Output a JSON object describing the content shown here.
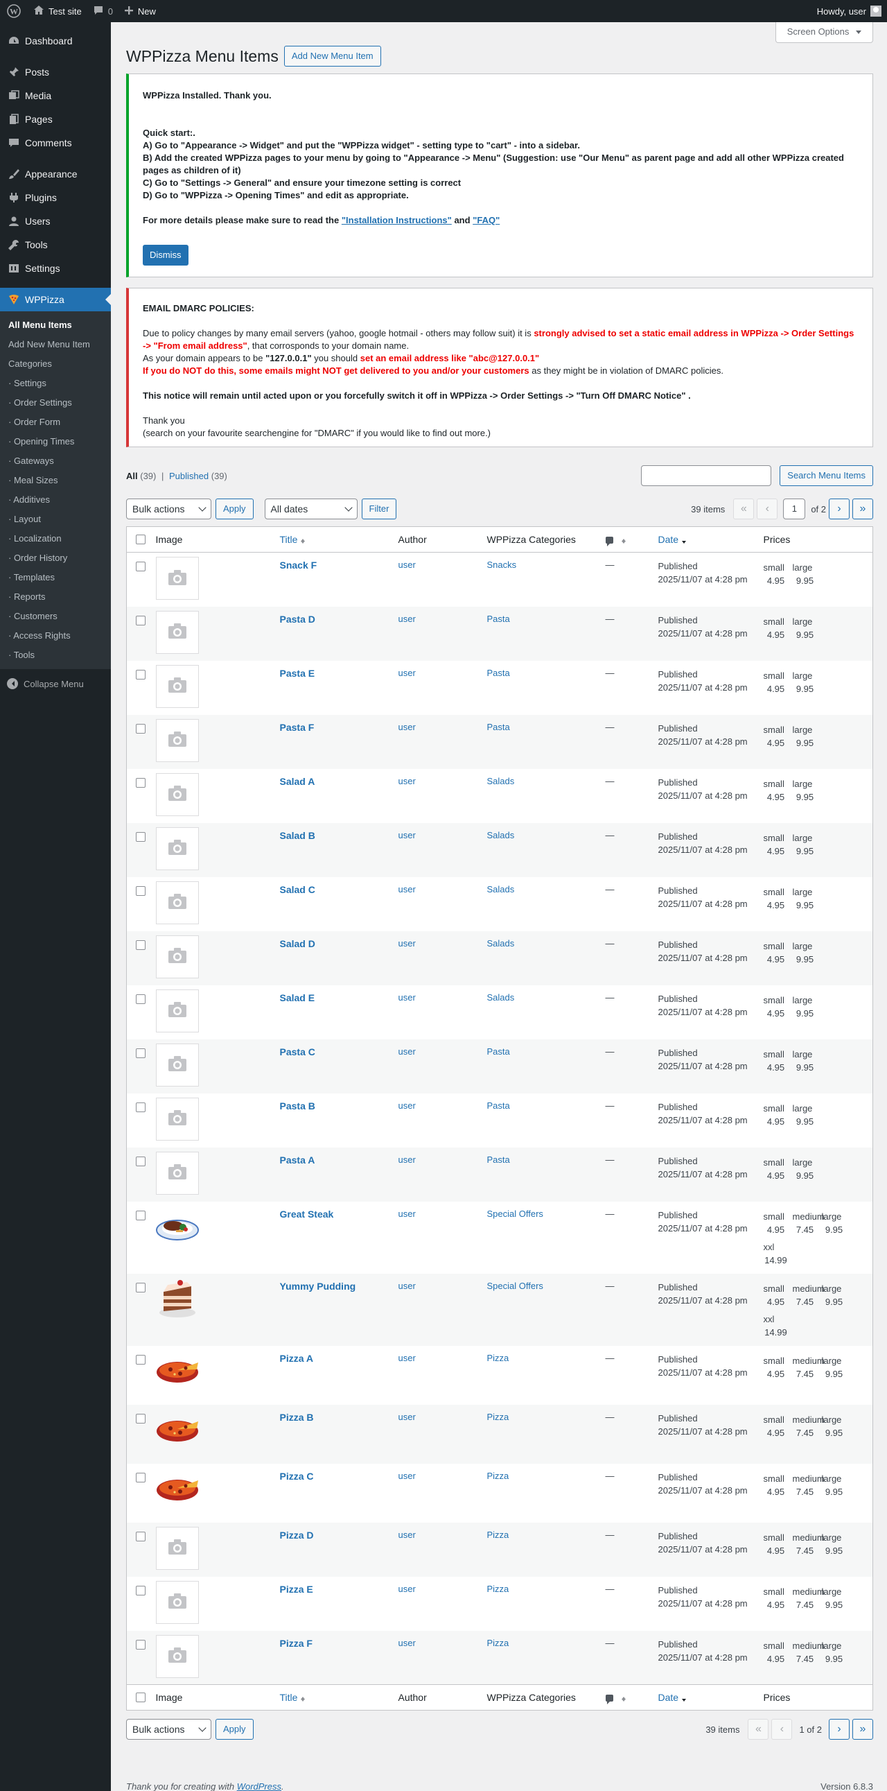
{
  "adminbar": {
    "site_name": "Test site",
    "comments_count": "0",
    "new_label": "New",
    "howdy": "Howdy, user"
  },
  "sidebar": {
    "dashboard": "Dashboard",
    "posts": "Posts",
    "media": "Media",
    "pages": "Pages",
    "comments": "Comments",
    "appearance": "Appearance",
    "plugins": "Plugins",
    "users": "Users",
    "tools": "Tools",
    "settings": "Settings",
    "wppizza": "WPPizza",
    "submenu": [
      "All Menu Items",
      "Add New Menu Item",
      "Categories",
      "· Settings",
      "· Order Settings",
      "· Order Form",
      "· Opening Times",
      "· Gateways",
      "· Meal Sizes",
      "· Additives",
      "· Layout",
      "· Localization",
      "· Order History",
      "· Templates",
      "· Reports",
      "· Customers",
      "· Access Rights",
      "· Tools"
    ],
    "collapse": "Collapse Menu"
  },
  "screen_options": "Screen Options",
  "page": {
    "title": "WPPizza Menu Items",
    "add_new": "Add New Menu Item"
  },
  "notice_install": {
    "heading": "WPPizza Installed. Thank you.",
    "quick_start": "Quick start:.",
    "a": "A) Go to \"Appearance -> Widget\" and put the \"WPPizza widget\" - setting type to \"cart\" - into a sidebar.",
    "b": "B) Add the created WPPizza pages to your menu by going to \"Appearance -> Menu\" (Suggestion: use \"Our Menu\" as parent page and add all other WPPizza created pages as children of it)",
    "c": "C) Go to \"Settings -> General\" and ensure your timezone setting is correct",
    "d": "D) Go to \"WPPizza -> Opening Times\" and edit as appropriate.",
    "more_prefix": "For more details please make sure to read the",
    "install_link": "\"Installation Instructions\"",
    "and": "and",
    "faq_link": "\"FAQ\"",
    "dismiss": "Dismiss"
  },
  "notice_dmarc": {
    "heading": "EMAIL DMARC POLICIES:",
    "p1_a": "Due to policy changes by many email servers (yahoo, google hotmail - others may follow suit) it is",
    "p1_red": "strongly advised to set a static email address in WPPizza -> Order Settings -> \"From email address\"",
    "p1_b": ", that corrosponds to your domain name.",
    "p2_a": "As your domain appears to be",
    "p2_domain": "\"127.0.0.1\"",
    "p2_b": "you should",
    "p2_red": "set an email address like \"abc@127.0.0.1\"",
    "p3_red": "If you do NOT do this, some emails might NOT get delivered to you and/or your customers",
    "p3_b": "as they might be in violation of DMARC policies.",
    "p4": "This notice will remain until acted upon or you forcefully switch it off in WPPizza -> Order Settings -> \"Turn Off DMARC Notice\" .",
    "thanks": "Thank you",
    "search_hint": "(search on your favourite searchengine for \"DMARC\" if you would like to find out more.)"
  },
  "views": {
    "all": "All",
    "all_count": "(39)",
    "sep": "|",
    "published": "Published",
    "published_count": "(39)"
  },
  "search_button": "Search Menu Items",
  "tablenav": {
    "bulk": "Bulk actions",
    "apply": "Apply",
    "dates": "All dates",
    "filter": "Filter",
    "items": "39 items",
    "page": "1",
    "of": "of 2",
    "page_text": "1 of 2"
  },
  "pager_glyphs": {
    "first": "«",
    "prev": "‹",
    "next": "›",
    "last": "»"
  },
  "columns": {
    "image": "Image",
    "title": "Title",
    "author": "Author",
    "categories": "WPPizza Categories",
    "date": "Date",
    "prices": "Prices"
  },
  "rows": [
    {
      "title": "Snack F",
      "author": "user",
      "category": "Snacks",
      "comments": "—",
      "status": "Published",
      "date": "2025/11/07 at 4:28 pm",
      "image": "placeholder",
      "prices": [
        [
          "small",
          "4.95"
        ],
        [
          "large",
          "9.95"
        ]
      ]
    },
    {
      "title": "Pasta D",
      "author": "user",
      "category": "Pasta",
      "comments": "—",
      "status": "Published",
      "date": "2025/11/07 at 4:28 pm",
      "image": "placeholder",
      "prices": [
        [
          "small",
          "4.95"
        ],
        [
          "large",
          "9.95"
        ]
      ]
    },
    {
      "title": "Pasta E",
      "author": "user",
      "category": "Pasta",
      "comments": "—",
      "status": "Published",
      "date": "2025/11/07 at 4:28 pm",
      "image": "placeholder",
      "prices": [
        [
          "small",
          "4.95"
        ],
        [
          "large",
          "9.95"
        ]
      ]
    },
    {
      "title": "Pasta F",
      "author": "user",
      "category": "Pasta",
      "comments": "—",
      "status": "Published",
      "date": "2025/11/07 at 4:28 pm",
      "image": "placeholder",
      "prices": [
        [
          "small",
          "4.95"
        ],
        [
          "large",
          "9.95"
        ]
      ]
    },
    {
      "title": "Salad A",
      "author": "user",
      "category": "Salads",
      "comments": "—",
      "status": "Published",
      "date": "2025/11/07 at 4:28 pm",
      "image": "placeholder",
      "prices": [
        [
          "small",
          "4.95"
        ],
        [
          "large",
          "9.95"
        ]
      ]
    },
    {
      "title": "Salad B",
      "author": "user",
      "category": "Salads",
      "comments": "—",
      "status": "Published",
      "date": "2025/11/07 at 4:28 pm",
      "image": "placeholder",
      "prices": [
        [
          "small",
          "4.95"
        ],
        [
          "large",
          "9.95"
        ]
      ]
    },
    {
      "title": "Salad C",
      "author": "user",
      "category": "Salads",
      "comments": "—",
      "status": "Published",
      "date": "2025/11/07 at 4:28 pm",
      "image": "placeholder",
      "prices": [
        [
          "small",
          "4.95"
        ],
        [
          "large",
          "9.95"
        ]
      ]
    },
    {
      "title": "Salad D",
      "author": "user",
      "category": "Salads",
      "comments": "—",
      "status": "Published",
      "date": "2025/11/07 at 4:28 pm",
      "image": "placeholder",
      "prices": [
        [
          "small",
          "4.95"
        ],
        [
          "large",
          "9.95"
        ]
      ]
    },
    {
      "title": "Salad E",
      "author": "user",
      "category": "Salads",
      "comments": "—",
      "status": "Published",
      "date": "2025/11/07 at 4:28 pm",
      "image": "placeholder",
      "prices": [
        [
          "small",
          "4.95"
        ],
        [
          "large",
          "9.95"
        ]
      ]
    },
    {
      "title": "Pasta C",
      "author": "user",
      "category": "Pasta",
      "comments": "—",
      "status": "Published",
      "date": "2025/11/07 at 4:28 pm",
      "image": "placeholder",
      "prices": [
        [
          "small",
          "4.95"
        ],
        [
          "large",
          "9.95"
        ]
      ]
    },
    {
      "title": "Pasta B",
      "author": "user",
      "category": "Pasta",
      "comments": "—",
      "status": "Published",
      "date": "2025/11/07 at 4:28 pm",
      "image": "placeholder",
      "prices": [
        [
          "small",
          "4.95"
        ],
        [
          "large",
          "9.95"
        ]
      ]
    },
    {
      "title": "Pasta A",
      "author": "user",
      "category": "Pasta",
      "comments": "—",
      "status": "Published",
      "date": "2025/11/07 at 4:28 pm",
      "image": "placeholder",
      "prices": [
        [
          "small",
          "4.95"
        ],
        [
          "large",
          "9.95"
        ]
      ]
    },
    {
      "title": "Great Steak",
      "author": "user",
      "category": "Special Offers",
      "comments": "—",
      "status": "Published",
      "date": "2025/11/07 at 4:28 pm",
      "image": "steak",
      "prices": [
        [
          "small",
          "4.95"
        ],
        [
          "medium",
          "7.45"
        ],
        [
          "large",
          "9.95"
        ],
        [
          "xxl",
          "14.99"
        ]
      ]
    },
    {
      "title": "Yummy Pudding",
      "author": "user",
      "category": "Special Offers",
      "comments": "—",
      "status": "Published",
      "date": "2025/11/07 at 4:28 pm",
      "image": "cake",
      "prices": [
        [
          "small",
          "4.95"
        ],
        [
          "medium",
          "7.45"
        ],
        [
          "large",
          "9.95"
        ],
        [
          "xxl",
          "14.99"
        ]
      ]
    },
    {
      "title": "Pizza A",
      "author": "user",
      "category": "Pizza",
      "comments": "—",
      "status": "Published",
      "date": "2025/11/07 at 4:28 pm",
      "image": "pizza",
      "prices": [
        [
          "small",
          "4.95"
        ],
        [
          "medium",
          "7.45"
        ],
        [
          "large",
          "9.95"
        ]
      ]
    },
    {
      "title": "Pizza B",
      "author": "user",
      "category": "Pizza",
      "comments": "—",
      "status": "Published",
      "date": "2025/11/07 at 4:28 pm",
      "image": "pizza",
      "prices": [
        [
          "small",
          "4.95"
        ],
        [
          "medium",
          "7.45"
        ],
        [
          "large",
          "9.95"
        ]
      ]
    },
    {
      "title": "Pizza C",
      "author": "user",
      "category": "Pizza",
      "comments": "—",
      "status": "Published",
      "date": "2025/11/07 at 4:28 pm",
      "image": "pizza",
      "prices": [
        [
          "small",
          "4.95"
        ],
        [
          "medium",
          "7.45"
        ],
        [
          "large",
          "9.95"
        ]
      ]
    },
    {
      "title": "Pizza D",
      "author": "user",
      "category": "Pizza",
      "comments": "—",
      "status": "Published",
      "date": "2025/11/07 at 4:28 pm",
      "image": "placeholder",
      "prices": [
        [
          "small",
          "4.95"
        ],
        [
          "medium",
          "7.45"
        ],
        [
          "large",
          "9.95"
        ]
      ]
    },
    {
      "title": "Pizza E",
      "author": "user",
      "category": "Pizza",
      "comments": "—",
      "status": "Published",
      "date": "2025/11/07 at 4:28 pm",
      "image": "placeholder",
      "prices": [
        [
          "small",
          "4.95"
        ],
        [
          "medium",
          "7.45"
        ],
        [
          "large",
          "9.95"
        ]
      ]
    },
    {
      "title": "Pizza F",
      "author": "user",
      "category": "Pizza",
      "comments": "—",
      "status": "Published",
      "date": "2025/11/07 at 4:28 pm",
      "image": "placeholder",
      "prices": [
        [
          "small",
          "4.95"
        ],
        [
          "medium",
          "7.45"
        ],
        [
          "large",
          "9.95"
        ]
      ]
    }
  ],
  "footer": {
    "thanks_prefix": "Thank you for creating with",
    "wp_link": "WordPress",
    "thanks_suffix": ".",
    "version": "Version 6.8.3"
  },
  "colors": {
    "primary": "#2271b1",
    "admin_dark": "#1d2327",
    "notice_green": "#00a32a",
    "notice_red": "#d63638"
  }
}
